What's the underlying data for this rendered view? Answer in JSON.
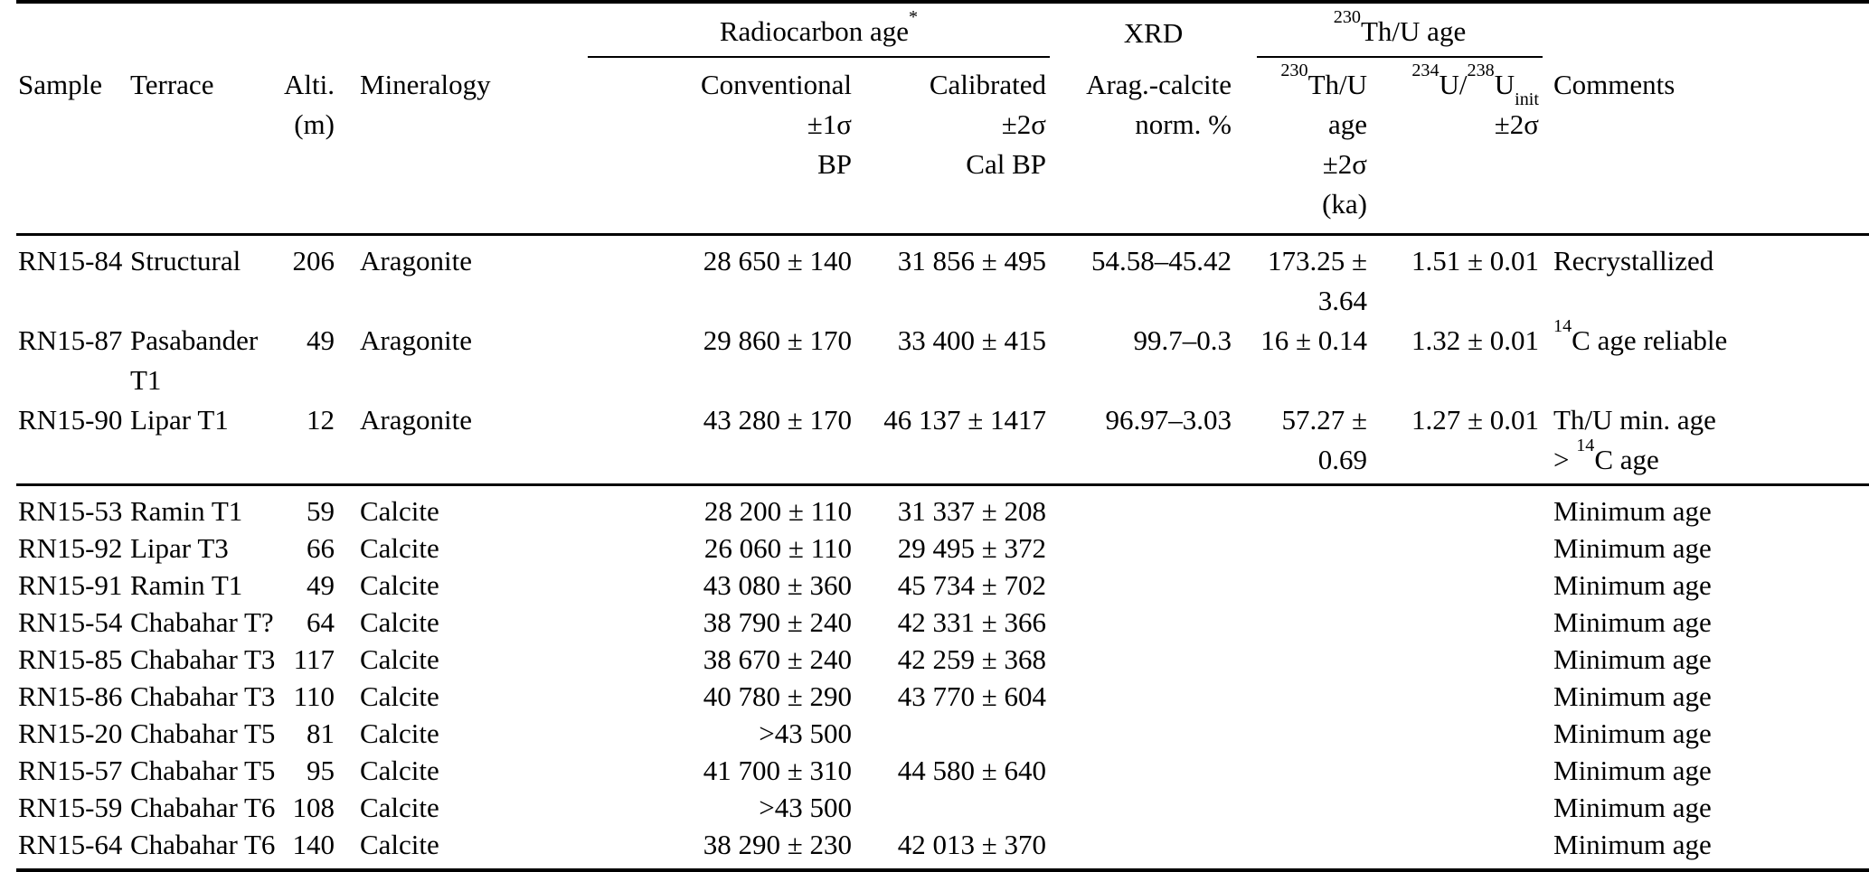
{
  "table": {
    "group_headers": {
      "radiocarbon": "Radiocarbon age^{*}",
      "xrd": "XRD",
      "thu": "^{230}Th/U age"
    },
    "columns": [
      {
        "key": "sample",
        "lines": [
          "Sample",
          "",
          ""
        ]
      },
      {
        "key": "terrace",
        "lines": [
          "Terrace",
          "",
          ""
        ]
      },
      {
        "key": "alti",
        "lines": [
          "Alti.",
          "(m)",
          ""
        ]
      },
      {
        "key": "mineralogy",
        "lines": [
          "Mineralogy",
          "",
          ""
        ]
      },
      {
        "key": "conventional",
        "lines": [
          "Conventional",
          "±1σ",
          "BP"
        ]
      },
      {
        "key": "calibrated",
        "lines": [
          "Calibrated",
          "±2σ",
          "Cal BP"
        ]
      },
      {
        "key": "xrd",
        "lines": [
          "Arag.-calcite",
          "norm. %",
          ""
        ]
      },
      {
        "key": "thu_age",
        "lines": [
          "^{230}Th/U age",
          "±2σ",
          "(ka)"
        ]
      },
      {
        "key": "u_ratio",
        "lines": [
          "^{234}U/^{238}U_{init}",
          "±2σ",
          ""
        ]
      },
      {
        "key": "comments",
        "lines": [
          "Comments",
          "",
          ""
        ]
      }
    ],
    "groups": [
      {
        "name": "aragonite-samples",
        "rows": [
          {
            "sample": "RN15-84",
            "terrace": "Structural",
            "alti": "206",
            "mineralogy": "Aragonite",
            "conventional": "28 650 ± 140",
            "calibrated": "31 856 ± 495",
            "xrd": "54.58–45.42",
            "thu_age": "173.25 ± 3.64",
            "u_ratio": "1.51 ± 0.01",
            "comments": [
              "Recrystallized"
            ]
          },
          {
            "sample": "RN15-87",
            "terrace": "Pasabander T1",
            "alti": "49",
            "mineralogy": "Aragonite",
            "conventional": "29 860 ± 170",
            "calibrated": "33 400 ± 415",
            "xrd": "99.7–0.3",
            "thu_age": "16 ± 0.14",
            "u_ratio": "1.32 ± 0.01",
            "comments": [
              "^{14}C age reliable"
            ]
          },
          {
            "sample": "RN15-90",
            "terrace": "Lipar T1",
            "alti": "12",
            "mineralogy": "Aragonite",
            "conventional": "43 280 ± 170",
            "calibrated": "46 137 ± 1417",
            "xrd": "96.97–3.03",
            "thu_age": "57.27 ± 0.69",
            "u_ratio": "1.27 ± 0.01",
            "comments": [
              "Th/U min. age",
              "> ^{14}C age"
            ]
          }
        ]
      },
      {
        "name": "calcite-samples",
        "rows": [
          {
            "sample": "RN15-53",
            "terrace": "Ramin T1",
            "alti": "59",
            "mineralogy": "Calcite",
            "conventional": "28 200 ± 110",
            "calibrated": "31 337 ± 208",
            "xrd": "",
            "thu_age": "",
            "u_ratio": "",
            "comments": [
              "Minimum age"
            ]
          },
          {
            "sample": "RN15-92",
            "terrace": "Lipar T3",
            "alti": "66",
            "mineralogy": "Calcite",
            "conventional": "26 060 ± 110",
            "calibrated": "29 495 ± 372",
            "xrd": "",
            "thu_age": "",
            "u_ratio": "",
            "comments": [
              "Minimum age"
            ]
          },
          {
            "sample": "RN15-91",
            "terrace": "Ramin T1",
            "alti": "49",
            "mineralogy": "Calcite",
            "conventional": "43 080 ± 360",
            "calibrated": "45 734 ± 702",
            "xrd": "",
            "thu_age": "",
            "u_ratio": "",
            "comments": [
              "Minimum age"
            ]
          },
          {
            "sample": "RN15-54",
            "terrace": "Chabahar T?",
            "alti": "64",
            "mineralogy": "Calcite",
            "conventional": "38 790 ± 240",
            "calibrated": "42 331 ± 366",
            "xrd": "",
            "thu_age": "",
            "u_ratio": "",
            "comments": [
              "Minimum age"
            ]
          },
          {
            "sample": "RN15-85",
            "terrace": "Chabahar T3",
            "alti": "117",
            "mineralogy": "Calcite",
            "conventional": "38 670 ± 240",
            "calibrated": "42 259 ± 368",
            "xrd": "",
            "thu_age": "",
            "u_ratio": "",
            "comments": [
              "Minimum age"
            ]
          },
          {
            "sample": "RN15-86",
            "terrace": "Chabahar T3",
            "alti": "110",
            "mineralogy": "Calcite",
            "conventional": "40 780 ± 290",
            "calibrated": "43 770 ± 604",
            "xrd": "",
            "thu_age": "",
            "u_ratio": "",
            "comments": [
              "Minimum age"
            ]
          },
          {
            "sample": "RN15-20",
            "terrace": "Chabahar T5",
            "alti": "81",
            "mineralogy": "Calcite",
            "conventional": ">43 500",
            "calibrated": "",
            "xrd": "",
            "thu_age": "",
            "u_ratio": "",
            "comments": [
              "Minimum age"
            ]
          },
          {
            "sample": "RN15-57",
            "terrace": "Chabahar T5",
            "alti": "95",
            "mineralogy": "Calcite",
            "conventional": "41 700 ± 310",
            "calibrated": "44 580 ± 640",
            "xrd": "",
            "thu_age": "",
            "u_ratio": "",
            "comments": [
              "Minimum age"
            ]
          },
          {
            "sample": "RN15-59",
            "terrace": "Chabahar T6",
            "alti": "108",
            "mineralogy": "Calcite",
            "conventional": ">43 500",
            "calibrated": "",
            "xrd": "",
            "thu_age": "",
            "u_ratio": "",
            "comments": [
              "Minimum age"
            ]
          },
          {
            "sample": "RN15-64",
            "terrace": "Chabahar T6",
            "alti": "140",
            "mineralogy": "Calcite",
            "conventional": "38 290 ± 230",
            "calibrated": "42 013 ± 370",
            "xrd": "",
            "thu_age": "",
            "u_ratio": "",
            "comments": [
              "Minimum age"
            ]
          }
        ]
      }
    ]
  }
}
